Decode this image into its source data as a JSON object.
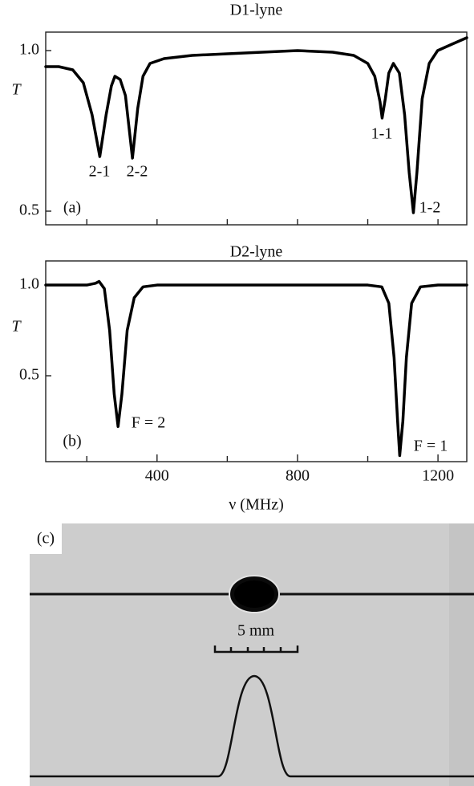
{
  "chart_data": [
    {
      "type": "line",
      "title": "D1-lyne",
      "y_label": "T",
      "panel_label": "(a)",
      "annotations": [
        "2-1",
        "2-2",
        "1-1",
        "1-2"
      ],
      "color": "#000000",
      "x": [
        83,
        120,
        160,
        190,
        215,
        237,
        255,
        270,
        280,
        295,
        310,
        330,
        345,
        360,
        380,
        420,
        500,
        600,
        700,
        800,
        900,
        960,
        1000,
        1020,
        1035,
        1041,
        1050,
        1060,
        1073,
        1090,
        1105,
        1118,
        1130,
        1140,
        1155,
        1175,
        1199,
        1240,
        1282
      ],
      "values": [
        0.95,
        0.95,
        0.94,
        0.9,
        0.8,
        0.67,
        0.8,
        0.89,
        0.92,
        0.91,
        0.86,
        0.665,
        0.82,
        0.92,
        0.96,
        0.975,
        0.985,
        0.99,
        0.995,
        1.0,
        0.995,
        0.985,
        0.96,
        0.92,
        0.84,
        0.79,
        0.85,
        0.93,
        0.96,
        0.93,
        0.8,
        0.62,
        0.495,
        0.62,
        0.85,
        0.96,
        1.0,
        1.02,
        1.04
      ],
      "xlim": [
        83,
        1282
      ],
      "ylim": [
        0.4575,
        1.0575
      ],
      "yticks": [
        {
          "value": 1,
          "label": "1.0"
        },
        0.5
      ],
      "xminor_ticks": [
        200,
        400,
        600,
        800,
        1000,
        1200
      ]
    },
    {
      "type": "line",
      "title": "D2-lyne",
      "y_label": "T",
      "x_label": "ν  (MHz)",
      "panel_label": "(b)",
      "annotations": [
        "F = 2",
        "F = 1"
      ],
      "color": "#000000",
      "x": [
        83,
        150,
        200,
        225,
        235,
        250,
        265,
        278,
        289,
        300,
        315,
        335,
        360,
        400,
        600,
        800,
        1000,
        1040,
        1060,
        1075,
        1085,
        1091,
        1100,
        1110,
        1125,
        1150,
        1200,
        1282
      ],
      "values": [
        1.0,
        1.0,
        1.0,
        1.01,
        1.02,
        0.98,
        0.75,
        0.4,
        0.22,
        0.4,
        0.75,
        0.93,
        0.99,
        1.0,
        1.0,
        1.0,
        1.0,
        0.99,
        0.9,
        0.6,
        0.25,
        0.06,
        0.25,
        0.6,
        0.9,
        0.99,
        1.0,
        1.0
      ],
      "xlim": [
        83,
        1282
      ],
      "ylim": [
        0.0265,
        1.133
      ],
      "yticks": [
        {
          "value": 1,
          "label": "1.0"
        },
        0.5
      ],
      "xticks": [
        400,
        800,
        1200
      ],
      "xminor_ticks": [
        200,
        600,
        1000
      ]
    }
  ],
  "image_panel": {
    "label": "(c)",
    "scale_bar": "5 mm"
  }
}
